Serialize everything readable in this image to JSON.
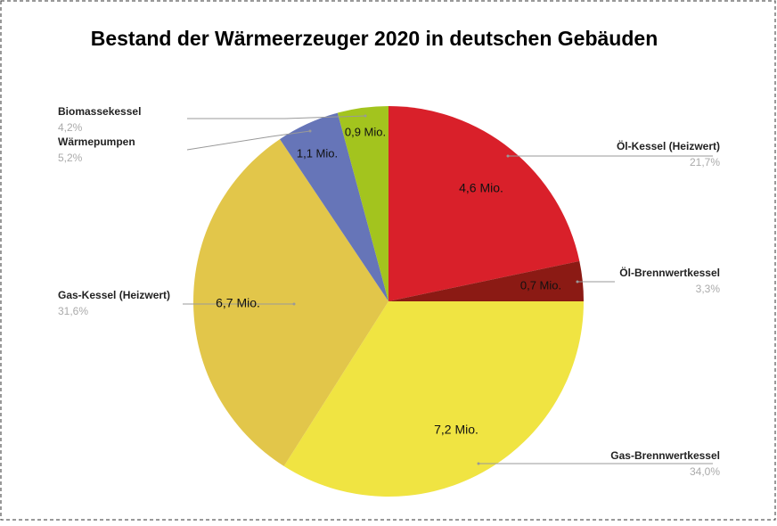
{
  "chart_data": {
    "type": "pie",
    "title": "Bestand der Wärmeerzeuger 2020 in deutschen Gebäuden",
    "categories": [
      "Öl-Kessel (Heizwert)",
      "Öl-Brennwertkessel",
      "Gas-Brennwertkessel",
      "Gas-Kessel (Heizwert)",
      "Wärmepumpen",
      "Biomassekessel"
    ],
    "values": [
      4.6,
      0.7,
      7.2,
      6.7,
      1.1,
      0.9
    ],
    "value_labels": [
      "4,6 Mio.",
      "0,7 Mio.",
      "7,2 Mio.",
      "6,7 Mio.",
      "1,1 Mio.",
      "0,9 Mio."
    ],
    "shares": [
      21.7,
      3.3,
      34.0,
      31.6,
      5.2,
      4.2
    ],
    "share_labels": [
      "21,7%",
      "3,3%",
      "34,0%",
      "31,6%",
      "5,2%",
      "4,2%"
    ],
    "colors": [
      "#d9202a",
      "#8b1a14",
      "#f0e442",
      "#e2c64a",
      "#6675b8",
      "#a3c41e"
    ]
  }
}
